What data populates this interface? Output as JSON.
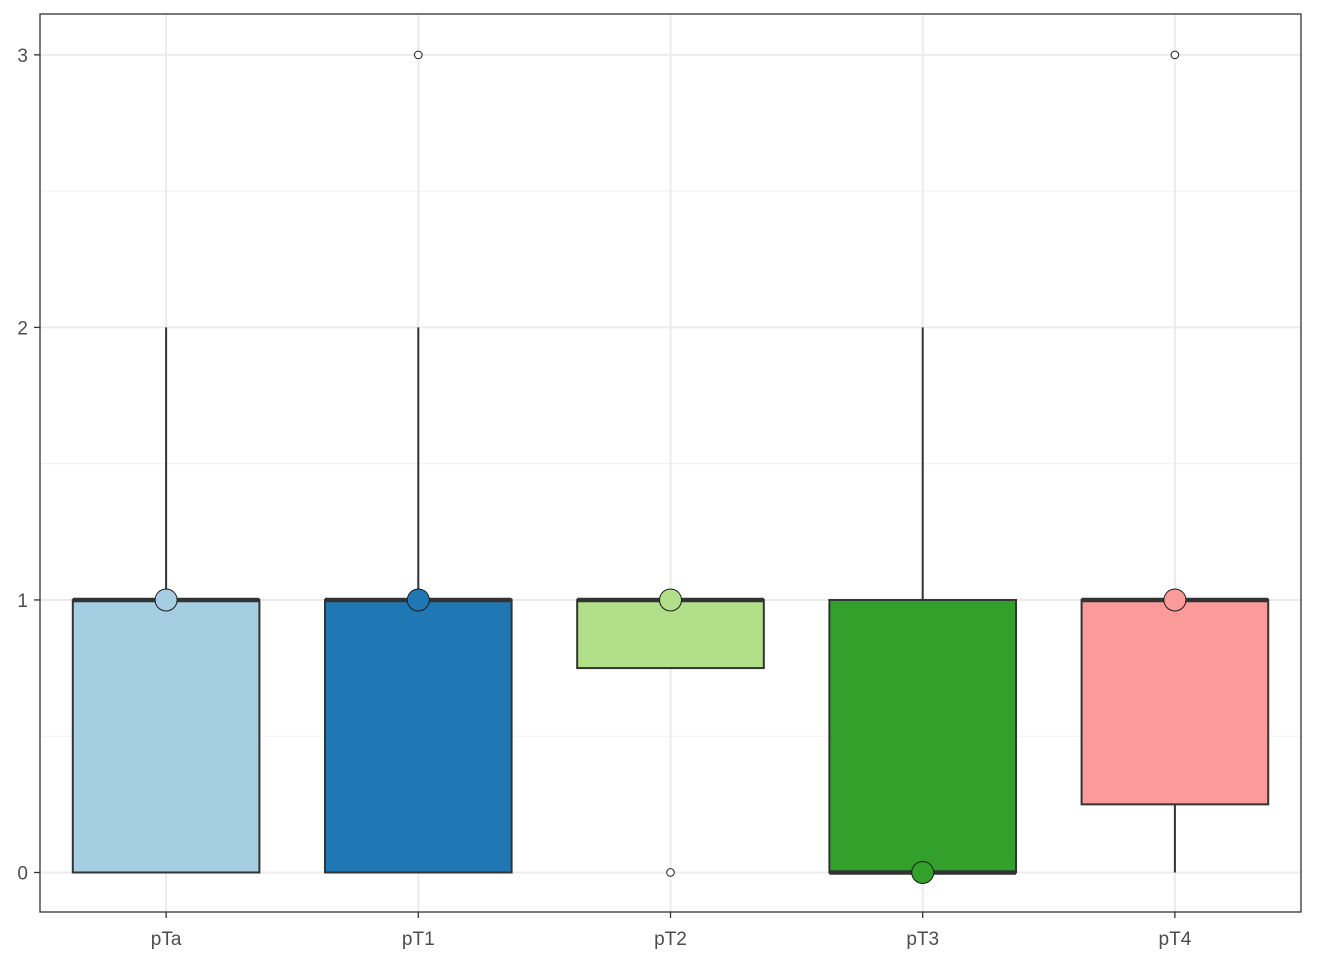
{
  "chart_data": {
    "type": "box",
    "categories": [
      "pTa",
      "pT1",
      "pT2",
      "pT3",
      "pT4"
    ],
    "boxes": [
      {
        "category": "pTa",
        "min": 0,
        "q1": 0,
        "median": 1,
        "q3": 1,
        "max": 2,
        "outliers": [],
        "point": 1,
        "fill": "#A6CEE3"
      },
      {
        "category": "pT1",
        "min": 0,
        "q1": 0,
        "median": 1,
        "q3": 1,
        "max": 2,
        "outliers": [
          3
        ],
        "point": 1,
        "fill": "#1F78B4"
      },
      {
        "category": "pT2",
        "min": 0.75,
        "q1": 0.75,
        "median": 1,
        "q3": 1,
        "max": 1,
        "outliers": [
          0
        ],
        "point": 1,
        "fill": "#B2DF8A"
      },
      {
        "category": "pT3",
        "min": 0,
        "q1": 0,
        "median": 0,
        "q3": 1,
        "max": 2,
        "outliers": [],
        "point": 0,
        "fill": "#33A02C"
      },
      {
        "category": "pT4",
        "min": 0,
        "q1": 0.25,
        "median": 1,
        "q3": 1,
        "max": 1,
        "outliers": [
          3
        ],
        "point": 1,
        "fill": "#FB9A99"
      }
    ],
    "y_ticks": [
      "0",
      "1",
      "2",
      "3"
    ],
    "y_tick_values": [
      0,
      1,
      2,
      3
    ],
    "ylim": [
      -0.145,
      3.15
    ],
    "grid": true,
    "title": "",
    "xlabel": "",
    "ylabel": ""
  }
}
